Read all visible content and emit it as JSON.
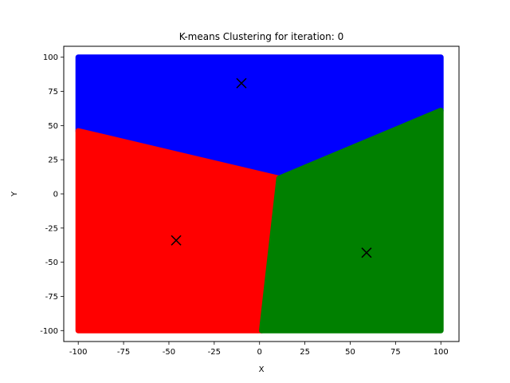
{
  "chart_data": {
    "type": "scatter",
    "title": "K-means Clustering for iteration: 0",
    "xlabel": "X",
    "ylabel": "Y",
    "xlim": [
      -108,
      110
    ],
    "ylim": [
      -108,
      108
    ],
    "xticks": [
      -100,
      -75,
      -50,
      -25,
      0,
      25,
      50,
      75,
      100
    ],
    "yticks": [
      -100,
      -75,
      -50,
      -25,
      0,
      25,
      50,
      75,
      100
    ],
    "grid": false,
    "legend": "none",
    "point_domain": {
      "x": [
        -100,
        100
      ],
      "y": [
        -100,
        100
      ]
    },
    "series": [
      {
        "color": "#0000ff",
        "centroid": [
          -10,
          81
        ]
      },
      {
        "color": "#ff0000",
        "centroid": [
          -46,
          -34
        ]
      },
      {
        "color": "#008000",
        "centroid": [
          59,
          -43
        ]
      }
    ],
    "centroid_marker": {
      "shape": "x",
      "color": "#000000"
    }
  }
}
